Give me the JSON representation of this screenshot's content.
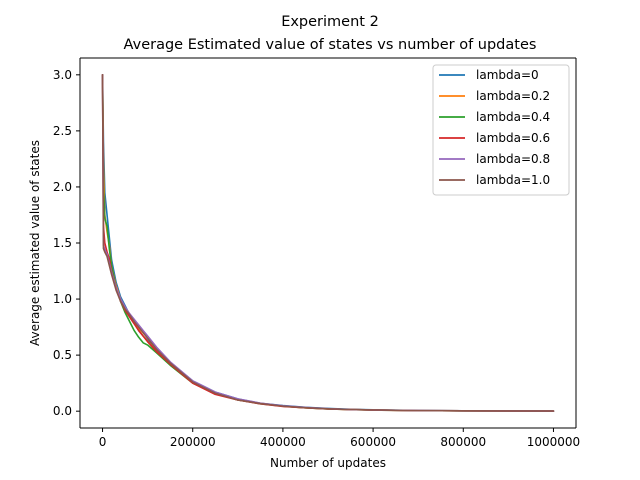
{
  "chart_data": {
    "type": "line",
    "title": "Experiment 2",
    "subtitle": "Average Estimated value of states vs number of updates",
    "xlabel": "Number of updates",
    "ylabel": "Average estimated value of states",
    "xlim": [
      -50000,
      1050000
    ],
    "ylim": [
      -0.15,
      3.15
    ],
    "xticks": [
      0,
      200000,
      400000,
      600000,
      800000,
      1000000
    ],
    "xtick_labels": [
      "0",
      "200000",
      "400000",
      "600000",
      "800000",
      "1000000"
    ],
    "yticks": [
      0.0,
      0.5,
      1.0,
      1.5,
      2.0,
      2.5,
      3.0
    ],
    "ytick_labels": [
      "0.0",
      "0.5",
      "1.0",
      "1.5",
      "2.0",
      "2.5",
      "3.0"
    ],
    "grid": false,
    "legend_position": "top-right",
    "series": [
      {
        "name": "lambda=0",
        "color": "#1f77b4",
        "x": [
          0,
          2000,
          5000,
          10000,
          15000,
          20000,
          30000,
          40000,
          50000,
          60000,
          70000,
          80000,
          90000,
          100000,
          120000,
          150000,
          200000,
          250000,
          300000,
          350000,
          400000,
          450000,
          500000,
          550000,
          600000,
          700000,
          800000,
          900000,
          1000000
        ],
        "y": [
          3.0,
          2.4,
          1.95,
          1.75,
          1.55,
          1.35,
          1.15,
          1.02,
          0.94,
          0.86,
          0.79,
          0.72,
          0.67,
          0.63,
          0.55,
          0.43,
          0.27,
          0.17,
          0.11,
          0.07,
          0.05,
          0.035,
          0.025,
          0.017,
          0.012,
          0.006,
          0.003,
          0.002,
          0.001
        ]
      },
      {
        "name": "lambda=0.2",
        "color": "#ff7f0e",
        "x": [
          0,
          2000,
          5000,
          10000,
          15000,
          20000,
          30000,
          40000,
          50000,
          60000,
          70000,
          80000,
          90000,
          100000,
          120000,
          150000,
          200000,
          250000,
          300000,
          350000,
          400000,
          450000,
          500000,
          550000,
          600000,
          700000,
          800000,
          900000,
          1000000
        ],
        "y": [
          3.0,
          2.2,
          1.75,
          1.6,
          1.48,
          1.3,
          1.12,
          1.0,
          0.92,
          0.85,
          0.79,
          0.73,
          0.67,
          0.62,
          0.54,
          0.43,
          0.26,
          0.16,
          0.1,
          0.07,
          0.045,
          0.03,
          0.02,
          0.015,
          0.011,
          0.005,
          0.003,
          0.002,
          0.001
        ]
      },
      {
        "name": "lambda=0.4",
        "color": "#2ca02c",
        "x": [
          0,
          2000,
          5000,
          10000,
          15000,
          20000,
          30000,
          40000,
          50000,
          60000,
          70000,
          80000,
          90000,
          100000,
          120000,
          150000,
          200000,
          250000,
          300000,
          350000,
          400000,
          450000,
          500000,
          550000,
          600000,
          700000,
          800000,
          900000,
          1000000
        ],
        "y": [
          3.0,
          2.0,
          1.72,
          1.65,
          1.45,
          1.3,
          1.1,
          0.98,
          0.88,
          0.8,
          0.72,
          0.66,
          0.61,
          0.59,
          0.52,
          0.41,
          0.25,
          0.16,
          0.1,
          0.066,
          0.044,
          0.03,
          0.02,
          0.014,
          0.01,
          0.005,
          0.003,
          0.002,
          0.001
        ]
      },
      {
        "name": "lambda=0.6",
        "color": "#d62728",
        "x": [
          0,
          2000,
          5000,
          10000,
          15000,
          20000,
          30000,
          40000,
          50000,
          60000,
          70000,
          80000,
          90000,
          100000,
          120000,
          150000,
          200000,
          250000,
          300000,
          350000,
          400000,
          450000,
          500000,
          550000,
          600000,
          700000,
          800000,
          900000,
          1000000
        ],
        "y": [
          3.0,
          1.65,
          1.5,
          1.42,
          1.36,
          1.25,
          1.1,
          0.98,
          0.9,
          0.84,
          0.78,
          0.72,
          0.67,
          0.62,
          0.53,
          0.42,
          0.25,
          0.15,
          0.1,
          0.065,
          0.042,
          0.03,
          0.02,
          0.014,
          0.01,
          0.005,
          0.003,
          0.002,
          0.001
        ]
      },
      {
        "name": "lambda=0.8",
        "color": "#9467bd",
        "x": [
          0,
          2000,
          5000,
          10000,
          15000,
          20000,
          30000,
          40000,
          50000,
          60000,
          70000,
          80000,
          90000,
          100000,
          120000,
          150000,
          200000,
          250000,
          300000,
          350000,
          400000,
          450000,
          500000,
          550000,
          600000,
          700000,
          800000,
          900000,
          1000000
        ],
        "y": [
          3.0,
          1.48,
          1.44,
          1.4,
          1.32,
          1.24,
          1.1,
          1.0,
          0.93,
          0.87,
          0.82,
          0.77,
          0.72,
          0.67,
          0.57,
          0.44,
          0.27,
          0.17,
          0.11,
          0.072,
          0.048,
          0.033,
          0.022,
          0.015,
          0.011,
          0.006,
          0.003,
          0.002,
          0.001
        ]
      },
      {
        "name": "lambda=1.0",
        "color": "#8c564b",
        "x": [
          0,
          2000,
          5000,
          10000,
          15000,
          20000,
          30000,
          40000,
          50000,
          60000,
          70000,
          80000,
          90000,
          100000,
          120000,
          150000,
          200000,
          250000,
          300000,
          350000,
          400000,
          450000,
          500000,
          550000,
          600000,
          700000,
          800000,
          900000,
          1000000
        ],
        "y": [
          3.0,
          1.45,
          1.42,
          1.38,
          1.3,
          1.22,
          1.08,
          0.98,
          0.91,
          0.86,
          0.8,
          0.75,
          0.7,
          0.65,
          0.55,
          0.43,
          0.26,
          0.16,
          0.1,
          0.068,
          0.045,
          0.031,
          0.021,
          0.015,
          0.011,
          0.005,
          0.003,
          0.002,
          0.001
        ]
      }
    ]
  }
}
